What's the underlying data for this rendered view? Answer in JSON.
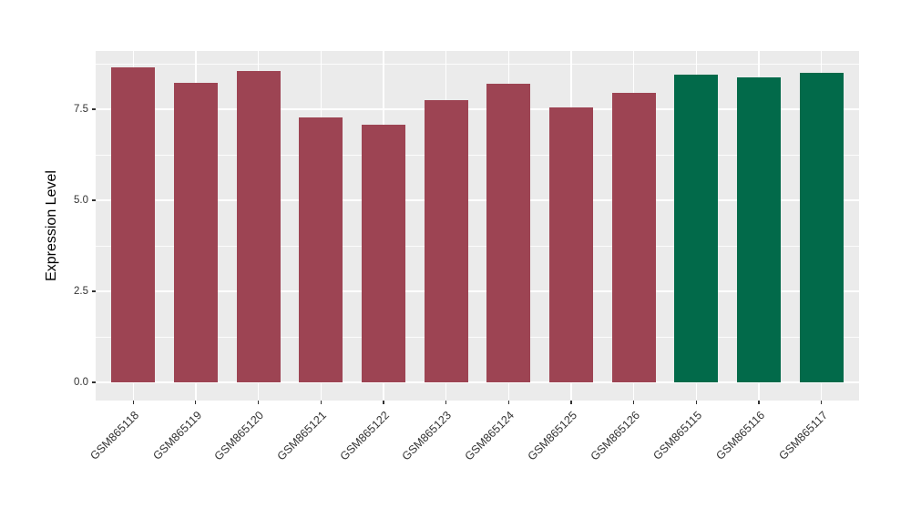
{
  "figure": {
    "background": "#FFFFFF",
    "panel_background": "#EBEBEB",
    "grid_major_color": "#FFFFFF",
    "grid_minor_color": "#FFFFFF"
  },
  "chart_data": {
    "type": "bar",
    "title": "",
    "xlabel": "",
    "ylabel": "Expression Level",
    "categories": [
      "GSM865118",
      "GSM865119",
      "GSM865120",
      "GSM865121",
      "GSM865122",
      "GSM865123",
      "GSM865124",
      "GSM865125",
      "GSM865126",
      "GSM865115",
      "GSM865116",
      "GSM865117"
    ],
    "values": [
      8.65,
      8.23,
      8.56,
      7.28,
      7.08,
      7.75,
      8.19,
      7.54,
      7.94,
      8.45,
      8.38,
      8.51
    ],
    "bar_colors": [
      "#9D4453",
      "#9D4453",
      "#9D4453",
      "#9D4453",
      "#9D4453",
      "#9D4453",
      "#9D4453",
      "#9D4453",
      "#9D4453",
      "#026A4A",
      "#026A4A",
      "#026A4A"
    ],
    "color_groups": {
      "maroon": {
        "color": "#9D4453",
        "categories": [
          "GSM865118",
          "GSM865119",
          "GSM865120",
          "GSM865121",
          "GSM865122",
          "GSM865123",
          "GSM865124",
          "GSM865125",
          "GSM865126"
        ]
      },
      "green": {
        "color": "#026A4A",
        "categories": [
          "GSM865115",
          "GSM865116",
          "GSM865117"
        ]
      }
    },
    "ylim": [
      -0.5,
      9.1
    ],
    "yticks": [
      0,
      2.5,
      5,
      7.5
    ],
    "ytick_labels": [
      "0.0",
      "2.5",
      "5.0",
      "7.5"
    ],
    "yticks_minor": [
      1.25,
      3.75,
      6.25,
      8.75
    ],
    "x_label_angle": 45,
    "legend": "none",
    "grid": "horizontal major+minor white, vertical major white at category centers"
  }
}
